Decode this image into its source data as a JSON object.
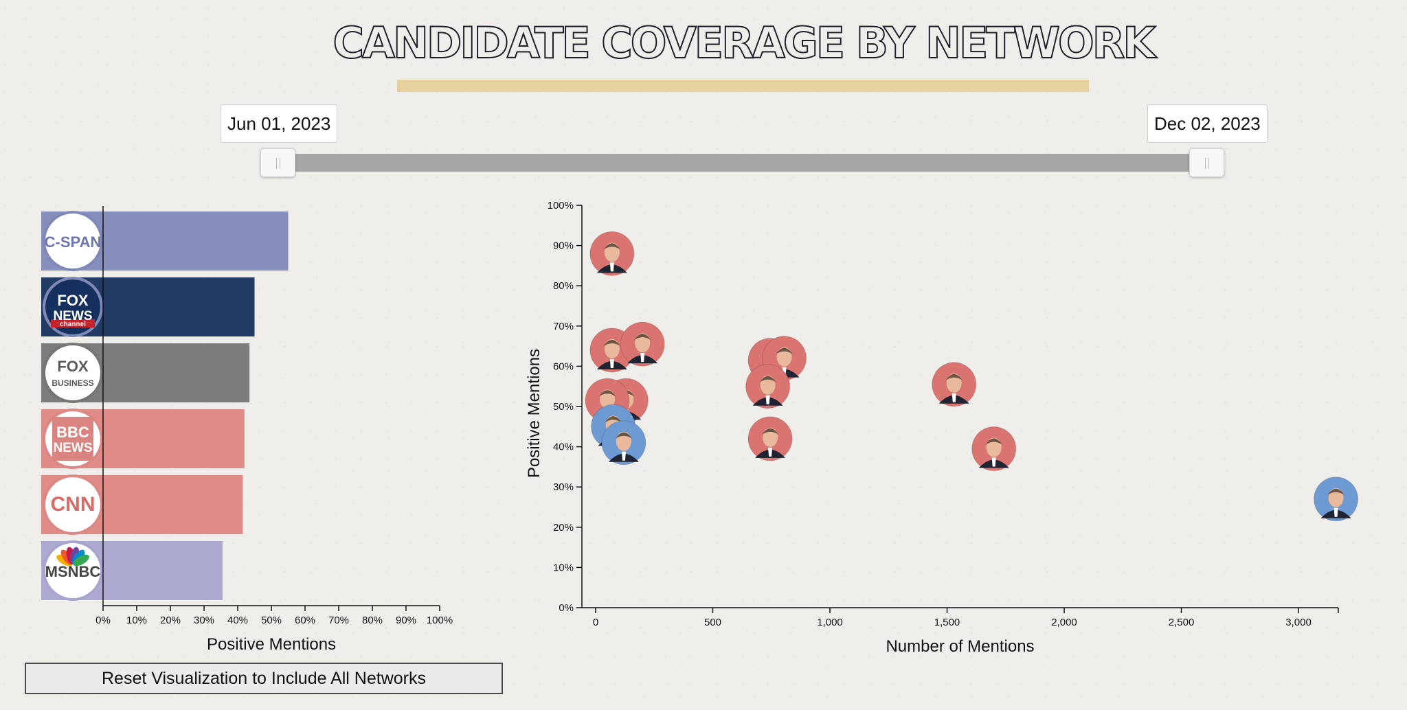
{
  "title": "CANDIDATE COVERAGE BY NETWORK",
  "date_range": {
    "start": "Jun 01, 2023",
    "end": "Dec 02, 2023"
  },
  "reset_button": "Reset Visualization to Include All Networks",
  "chart_data": [
    {
      "type": "bar",
      "orientation": "horizontal",
      "xlabel": "Positive Mentions",
      "xlim": [
        0,
        100
      ],
      "x_ticks": [
        "0%",
        "10%",
        "20%",
        "30%",
        "40%",
        "50%",
        "60%",
        "70%",
        "80%",
        "90%",
        "100%"
      ],
      "categories": [
        "C-SPAN",
        "FOX NEWS",
        "FOX BUSINESS",
        "BBC NEWS",
        "CNN",
        "MSNBC"
      ],
      "values": [
        55,
        45,
        43.5,
        42,
        41.5,
        35.5
      ],
      "colors": [
        "#8088b8",
        "#15305e",
        "#757575",
        "#de8785",
        "#de8785",
        "#a8a5d0"
      ],
      "logos": [
        {
          "text": "C-SPAN",
          "ring": "#8088b8"
        },
        {
          "text": "FOX",
          "text2": "NEWS",
          "text3": "channel",
          "ring": "#8088b8"
        },
        {
          "text": "FOX",
          "text2": "BUSINESS",
          "ring": "#757575"
        },
        {
          "text": "BBC",
          "text2": "NEWS",
          "ring": "#de8785"
        },
        {
          "text": "CNN",
          "ring": "#de8785"
        },
        {
          "text": "MSNBC",
          "ring": "#a8a5d0"
        }
      ]
    },
    {
      "type": "scatter",
      "xlabel": "Number of Mentions",
      "ylabel": "Positive Mentions",
      "xlim": [
        0,
        3170
      ],
      "ylim": [
        0,
        100
      ],
      "x_ticks": [
        {
          "value": 0,
          "label": "0"
        },
        {
          "value": 500,
          "label": "500"
        },
        {
          "value": 1000,
          "label": "1,000"
        },
        {
          "value": 1500,
          "label": "1,500"
        },
        {
          "value": 2000,
          "label": "2,000"
        },
        {
          "value": 2500,
          "label": "2,500"
        },
        {
          "value": 3000,
          "label": "3,000"
        }
      ],
      "y_ticks": [
        "0%",
        "10%",
        "20%",
        "30%",
        "40%",
        "50%",
        "60%",
        "70%",
        "80%",
        "90%",
        "100%"
      ],
      "points": [
        {
          "x": 70,
          "y": 88,
          "party": "R"
        },
        {
          "x": 70,
          "y": 64,
          "party": "R"
        },
        {
          "x": 200,
          "y": 65.5,
          "party": "R"
        },
        {
          "x": 745,
          "y": 61.5,
          "party": "R"
        },
        {
          "x": 805,
          "y": 62,
          "party": "R"
        },
        {
          "x": 735,
          "y": 55,
          "party": "R"
        },
        {
          "x": 1530,
          "y": 55.5,
          "party": "R"
        },
        {
          "x": 745,
          "y": 42,
          "party": "R"
        },
        {
          "x": 1700,
          "y": 39.5,
          "party": "R"
        },
        {
          "x": 130,
          "y": 51.5,
          "party": "R"
        },
        {
          "x": 50,
          "y": 51.5,
          "party": "R"
        },
        {
          "x": 75,
          "y": 45,
          "party": "D"
        },
        {
          "x": 120,
          "y": 41,
          "party": "D"
        },
        {
          "x": 3160,
          "y": 27,
          "party": "D"
        }
      ],
      "party_colors": {
        "R": "#d97470",
        "D": "#6e9ad3"
      }
    }
  ]
}
